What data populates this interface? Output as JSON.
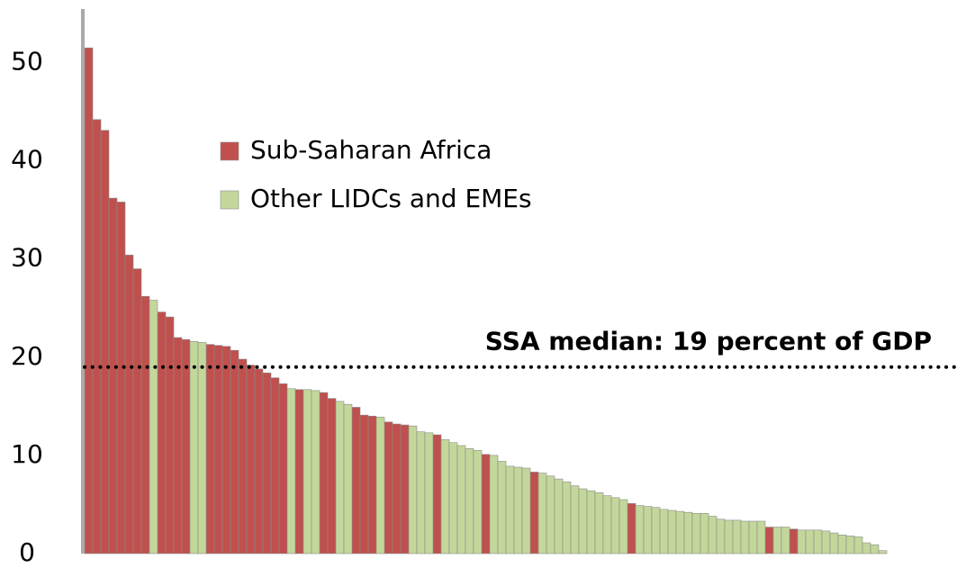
{
  "chart_data": {
    "type": "bar",
    "stacked": false,
    "categories": [
      null,
      null,
      null,
      null,
      null,
      null,
      null,
      null,
      null,
      null,
      null,
      null,
      null,
      null,
      null,
      null,
      null,
      null,
      null,
      null,
      null,
      null,
      null,
      null,
      null,
      null,
      null,
      null,
      null,
      null,
      null,
      null,
      null,
      null,
      null,
      null,
      null,
      null,
      null,
      null,
      null,
      null,
      null,
      null,
      null,
      null,
      null,
      null,
      null,
      null,
      null,
      null,
      null,
      null,
      null,
      null,
      null,
      null,
      null,
      null,
      null,
      null,
      null,
      null,
      null,
      null,
      null,
      null,
      null,
      null,
      null,
      null,
      null,
      null,
      null,
      null,
      null,
      null,
      null,
      null,
      null,
      null,
      null,
      null,
      null,
      null,
      null,
      null,
      null,
      null,
      null,
      null,
      null,
      null,
      null,
      null,
      null,
      null,
      null
    ],
    "series": [
      {
        "name": "Sub-Saharan Africa",
        "color": "#c0504d",
        "values": [
          51.5,
          44.2,
          43.1,
          36.2,
          35.8,
          30.4,
          29.0,
          26.2,
          null,
          24.6,
          24.1,
          22.0,
          21.8,
          null,
          null,
          21.3,
          21.2,
          21.1,
          20.7,
          19.8,
          19.2,
          18.8,
          18.4,
          17.9,
          17.3,
          null,
          16.7,
          null,
          null,
          16.4,
          15.8,
          null,
          null,
          14.9,
          14.1,
          14.0,
          null,
          13.4,
          13.2,
          13.1,
          null,
          null,
          null,
          12.1,
          null,
          null,
          null,
          null,
          null,
          10.1,
          null,
          null,
          null,
          null,
          null,
          8.3,
          null,
          null,
          null,
          null,
          null,
          null,
          null,
          null,
          null,
          null,
          null,
          5.1,
          null,
          null,
          null,
          null,
          null,
          null,
          null,
          null,
          null,
          null,
          null,
          null,
          null,
          null,
          null,
          null,
          2.7,
          null,
          null,
          2.5,
          null,
          null,
          null,
          null,
          null,
          null,
          null,
          null,
          null,
          null,
          null
        ]
      },
      {
        "name": "Other LIDCs and EMEs",
        "color": "#c4d79b",
        "values": [
          null,
          null,
          null,
          null,
          null,
          null,
          null,
          null,
          25.8,
          null,
          null,
          null,
          null,
          21.6,
          21.5,
          null,
          null,
          null,
          null,
          null,
          null,
          null,
          null,
          null,
          null,
          16.8,
          null,
          16.7,
          16.6,
          null,
          null,
          15.5,
          15.2,
          null,
          null,
          null,
          13.9,
          null,
          null,
          null,
          13.0,
          12.4,
          12.3,
          null,
          11.6,
          11.3,
          11.0,
          10.7,
          10.5,
          null,
          10.0,
          9.4,
          8.9,
          8.8,
          8.7,
          null,
          8.2,
          7.9,
          7.6,
          7.3,
          6.9,
          6.6,
          6.4,
          6.2,
          5.9,
          5.7,
          5.5,
          null,
          4.9,
          4.8,
          4.7,
          4.5,
          4.4,
          4.3,
          4.2,
          4.1,
          4.1,
          3.8,
          3.5,
          3.4,
          3.4,
          3.3,
          3.3,
          3.3,
          null,
          2.7,
          2.7,
          null,
          2.4,
          2.4,
          2.4,
          2.3,
          2.1,
          1.9,
          1.8,
          1.7,
          1.1,
          0.9,
          0.3
        ]
      }
    ],
    "reference_line": {
      "value": 19,
      "label": "SSA median: 19 percent of GDP"
    },
    "ylim": [
      0,
      55
    ],
    "yticks": [
      0,
      10,
      20,
      30,
      40,
      50
    ],
    "grid": false
  }
}
